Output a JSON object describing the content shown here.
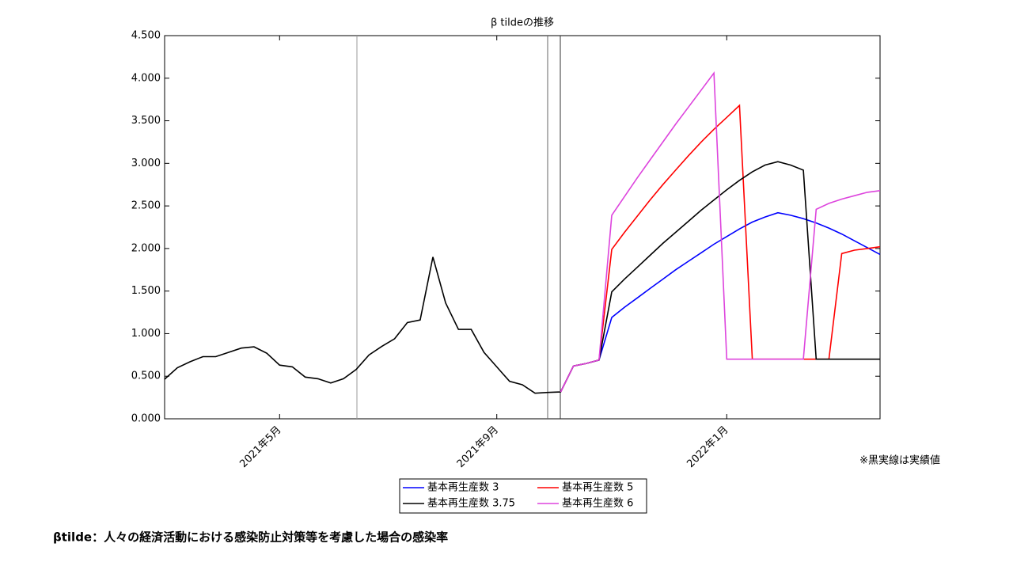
{
  "chart_data": {
    "type": "line",
    "title": "β tildeの推移",
    "categories": [
      null,
      null,
      null,
      null,
      null,
      null,
      null,
      null,
      null,
      "2021年5月",
      null,
      null,
      null,
      null,
      null,
      null,
      null,
      null,
      null,
      null,
      null,
      null,
      null,
      null,
      null,
      null,
      "2021年9月",
      null,
      null,
      null,
      null,
      null,
      null,
      null,
      null,
      null,
      null,
      null,
      null,
      null,
      null,
      null,
      null,
      null,
      "2022年1月",
      null,
      null,
      null,
      null,
      null,
      null,
      null,
      null,
      null,
      null,
      null,
      null
    ],
    "series": [
      {
        "name": "基本再生産数 3",
        "color": "#0000ff",
        "values": [
          null,
          null,
          null,
          null,
          null,
          null,
          null,
          null,
          null,
          null,
          null,
          null,
          null,
          null,
          null,
          null,
          null,
          null,
          null,
          null,
          null,
          null,
          null,
          null,
          null,
          null,
          null,
          null,
          null,
          null,
          null,
          0.315,
          0.62,
          0.65,
          0.69,
          1.19,
          1.31,
          1.42,
          1.53,
          1.64,
          1.75,
          1.85,
          1.95,
          2.05,
          2.14,
          2.23,
          2.31,
          2.37,
          2.42,
          2.39,
          2.35,
          2.3,
          2.24,
          2.17,
          2.09,
          2.01,
          1.93
        ]
      },
      {
        "name": "基本再生産数 5",
        "color": "#ff0000",
        "values": [
          null,
          null,
          null,
          null,
          null,
          null,
          null,
          null,
          null,
          null,
          null,
          null,
          null,
          null,
          null,
          null,
          null,
          null,
          null,
          null,
          null,
          null,
          null,
          null,
          null,
          null,
          null,
          null,
          null,
          null,
          null,
          0.315,
          0.62,
          0.65,
          0.69,
          1.99,
          2.19,
          2.38,
          2.57,
          2.75,
          2.92,
          3.09,
          3.25,
          3.4,
          3.54,
          3.68,
          0.7,
          0.7,
          0.7,
          0.7,
          0.7,
          0.7,
          0.7,
          1.94,
          1.98,
          2.0,
          2.02
        ]
      },
      {
        "name": "基本再生産数 3.75",
        "color": "#000000",
        "values": [
          0.465,
          0.6,
          0.67,
          0.73,
          0.73,
          0.78,
          0.83,
          0.845,
          0.77,
          0.63,
          0.61,
          0.49,
          0.47,
          0.42,
          0.47,
          0.58,
          0.75,
          0.85,
          0.94,
          1.13,
          1.16,
          1.9,
          1.36,
          1.05,
          1.05,
          0.78,
          0.61,
          0.44,
          0.4,
          0.3,
          0.31,
          0.315,
          0.62,
          0.65,
          0.69,
          1.49,
          1.64,
          1.78,
          1.92,
          2.06,
          2.19,
          2.32,
          2.45,
          2.57,
          2.69,
          2.8,
          2.9,
          2.98,
          3.02,
          2.98,
          2.92,
          0.7,
          0.7,
          0.7,
          0.7,
          0.7,
          0.7
        ]
      },
      {
        "name": "基本再生産数 6",
        "color": "#dd44dd",
        "values": [
          null,
          null,
          null,
          null,
          null,
          null,
          null,
          null,
          null,
          null,
          null,
          null,
          null,
          null,
          null,
          null,
          null,
          null,
          null,
          null,
          null,
          null,
          null,
          null,
          null,
          null,
          null,
          null,
          null,
          null,
          null,
          0.315,
          0.62,
          0.65,
          0.69,
          2.39,
          2.61,
          2.83,
          3.04,
          3.25,
          3.46,
          3.66,
          3.86,
          4.06,
          0.7,
          0.7,
          0.7,
          0.7,
          0.7,
          0.7,
          0.7,
          2.46,
          2.53,
          2.58,
          2.62,
          2.66,
          2.68
        ]
      }
    ],
    "ylim": [
      0,
      4.5
    ],
    "yticks": [
      {
        "value": 0,
        "label": "0.000"
      },
      {
        "value": 0.5,
        "label": "0.500"
      },
      {
        "value": 1,
        "label": "1.000"
      },
      {
        "value": 1.5,
        "label": "1.500"
      },
      {
        "value": 2,
        "label": "2.000"
      },
      {
        "value": 2.5,
        "label": "2.500"
      },
      {
        "value": 3,
        "label": "3.000"
      },
      {
        "value": 3.5,
        "label": "3.500"
      },
      {
        "value": 4,
        "label": "4.000"
      },
      {
        "value": 4.5,
        "label": "4.500"
      }
    ],
    "grid": false,
    "note": "※黒実線は実績値",
    "caption": "βtilde：人々の経済活動における感染防止対策等を考慮した場合の感染率"
  }
}
